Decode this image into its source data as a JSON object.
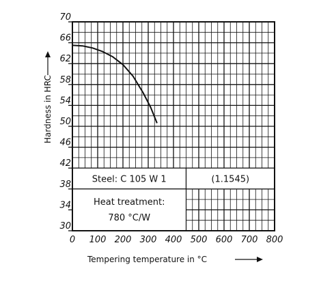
{
  "chart_data": {
    "type": "line",
    "title": "",
    "xlabel": "Tempering temperature in °C",
    "ylabel": "Hardness in HRC",
    "xlim": [
      0,
      800
    ],
    "ylim": [
      30,
      70
    ],
    "x_ticks": [
      0,
      100,
      200,
      300,
      400,
      500,
      600,
      700,
      800
    ],
    "y_ticks": [
      30,
      34,
      38,
      42,
      46,
      50,
      54,
      58,
      62,
      66,
      70
    ],
    "x_tick_labels": [
      "0",
      "100",
      "200",
      "300",
      "400",
      "500",
      "600",
      "700",
      "800"
    ],
    "y_tick_labels": [
      "30",
      "34",
      "38",
      "42",
      "46",
      "50",
      "54",
      "58",
      "62",
      "66",
      "70"
    ],
    "grid": true,
    "series": [
      {
        "color": "#111111",
        "x": [
          0,
          40,
          80,
          120,
          160,
          200,
          240,
          280,
          310,
          335
        ],
        "y": [
          65.5,
          65.4,
          65.0,
          64.3,
          63.3,
          61.8,
          59.6,
          56.4,
          53.6,
          50.6
        ]
      }
    ],
    "annotations": {
      "steel_label": "Steel: C 105 W 1",
      "material_number": "(1.1545)",
      "heat_treatment_line1": "Heat treatment:",
      "heat_treatment_line2": "780 °C/W"
    }
  }
}
